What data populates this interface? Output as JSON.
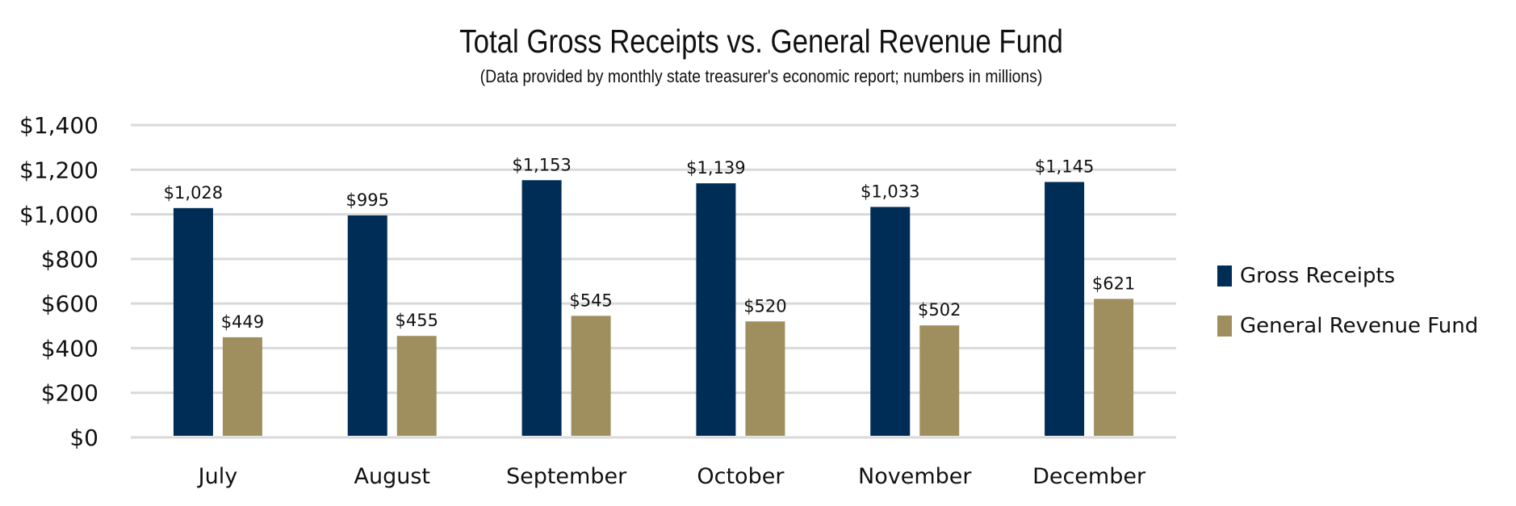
{
  "chart_data": {
    "type": "bar",
    "title": "Total Gross Receipts vs. General Revenue Fund",
    "subtitle": "(Data provided by monthly state treasurer's economic report; numbers in millions)",
    "categories": [
      "July",
      "August",
      "September",
      "October",
      "November",
      "December"
    ],
    "series": [
      {
        "name": "Gross Receipts",
        "color": "#002D56",
        "values": [
          1028,
          995,
          1153,
          1139,
          1033,
          1145
        ],
        "labels": [
          "$1,028",
          "$995",
          "$1,153",
          "$1,139",
          "$1,033",
          "$1,145"
        ]
      },
      {
        "name": "General Revenue Fund",
        "color": "#A08F5E",
        "values": [
          449,
          455,
          545,
          520,
          502,
          621
        ],
        "labels": [
          "$449",
          "$455",
          "$545",
          "$520",
          "$502",
          "$621"
        ]
      }
    ],
    "ylim": [
      0,
      1400
    ],
    "yticks": [
      0,
      200,
      400,
      600,
      800,
      1000,
      1200,
      1400
    ],
    "ytick_labels": [
      "$0",
      "$200",
      "$400",
      "$600",
      "$800",
      "$1,000",
      "$1,200",
      "$1,400"
    ],
    "grid": true,
    "legend": "right"
  }
}
